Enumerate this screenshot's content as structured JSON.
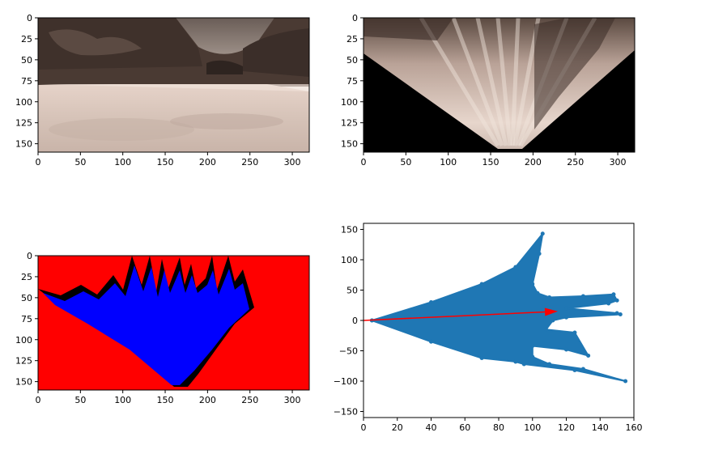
{
  "chart_data": [
    {
      "type": "image",
      "panel": "camera",
      "xlim": [
        0,
        320
      ],
      "ylim": [
        160,
        0
      ],
      "xticks": [
        0,
        50,
        100,
        150,
        200,
        250,
        300
      ],
      "yticks": [
        0,
        25,
        50,
        75,
        100,
        125,
        150
      ]
    },
    {
      "type": "image",
      "panel": "warped",
      "xlim": [
        0,
        320
      ],
      "ylim": [
        160,
        0
      ],
      "xticks": [
        0,
        50,
        100,
        150,
        200,
        250,
        300
      ],
      "yticks": [
        0,
        25,
        50,
        75,
        100,
        125,
        150
      ]
    },
    {
      "type": "image",
      "panel": "threshold",
      "colors": {
        "background": "#ff0000",
        "navigable": "#0000ff",
        "obstacle": "#000000"
      },
      "xlim": [
        0,
        320
      ],
      "ylim": [
        160,
        0
      ],
      "xticks": [
        0,
        50,
        100,
        150,
        200,
        250,
        300
      ],
      "yticks": [
        0,
        25,
        50,
        75,
        100,
        125,
        150
      ]
    },
    {
      "type": "scatter",
      "panel": "rover-coords",
      "xlim": [
        0,
        160
      ],
      "ylim": [
        -160,
        160
      ],
      "xticks": [
        0,
        20,
        40,
        60,
        80,
        100,
        120,
        140,
        160
      ],
      "yticks": [
        -150,
        -100,
        -50,
        0,
        50,
        100,
        150
      ],
      "series": [
        {
          "color": "#1f77b4",
          "outline": [
            [
              5,
              0
            ],
            [
              40,
              30
            ],
            [
              70,
              60
            ],
            [
              90,
              88
            ],
            [
              106,
              143
            ],
            [
              104,
              110
            ],
            [
              100,
              60
            ],
            [
              103,
              45
            ],
            [
              110,
              38
            ],
            [
              130,
              40
            ],
            [
              148,
              43
            ],
            [
              150,
              33
            ],
            [
              145,
              28
            ],
            [
              120,
              20
            ],
            [
              150,
              12
            ],
            [
              152,
              10
            ],
            [
              120,
              5
            ],
            [
              112,
              0
            ],
            [
              108,
              -15
            ],
            [
              125,
              -20
            ],
            [
              133,
              -58
            ],
            [
              120,
              -48
            ],
            [
              100,
              -42
            ],
            [
              100,
              -60
            ],
            [
              110,
              -72
            ],
            [
              130,
              -80
            ],
            [
              155,
              -100
            ],
            [
              125,
              -82
            ],
            [
              95,
              -72
            ],
            [
              90,
              -68
            ],
            [
              70,
              -62
            ],
            [
              40,
              -35
            ],
            [
              5,
              0
            ]
          ]
        }
      ],
      "arrow": {
        "from": [
          0,
          0
        ],
        "to": [
          115,
          15
        ],
        "color": "#ff0000"
      }
    }
  ]
}
